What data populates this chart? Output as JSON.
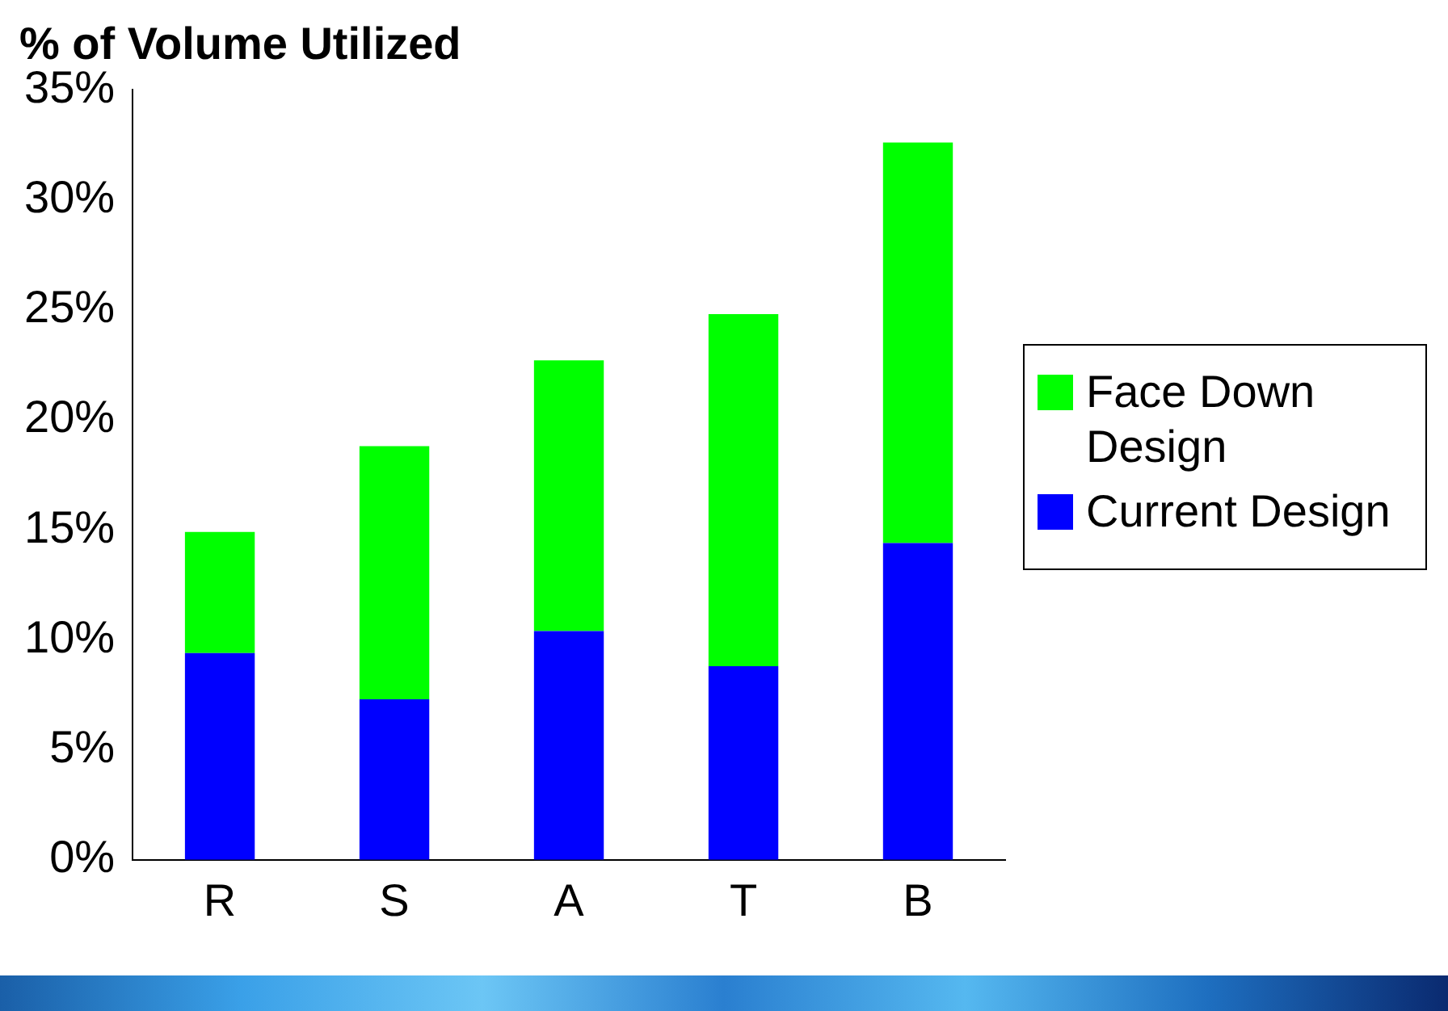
{
  "chart_data": {
    "type": "bar",
    "title": "% of Volume Utilized",
    "categories": [
      "R",
      "S",
      "A",
      "T",
      "B"
    ],
    "stacked": true,
    "series": [
      {
        "name": "Current Design",
        "color": "#0000ff",
        "values": [
          9.4,
          7.3,
          10.4,
          8.8,
          14.4
        ]
      },
      {
        "name": "Face Down Design",
        "color": "#00ff00",
        "values": [
          5.5,
          11.5,
          12.3,
          16.0,
          18.2
        ]
      }
    ],
    "ylim": [
      0,
      35
    ],
    "yticks": [
      {
        "value": 0,
        "label": "0%"
      },
      {
        "value": 5,
        "label": "5%"
      },
      {
        "value": 10,
        "label": "10%"
      },
      {
        "value": 15,
        "label": "15%"
      },
      {
        "value": 20,
        "label": "20%"
      },
      {
        "value": 25,
        "label": "25%"
      },
      {
        "value": 30,
        "label": "30%"
      },
      {
        "value": 35,
        "label": "35%"
      }
    ],
    "grid": false,
    "legend": "right"
  }
}
